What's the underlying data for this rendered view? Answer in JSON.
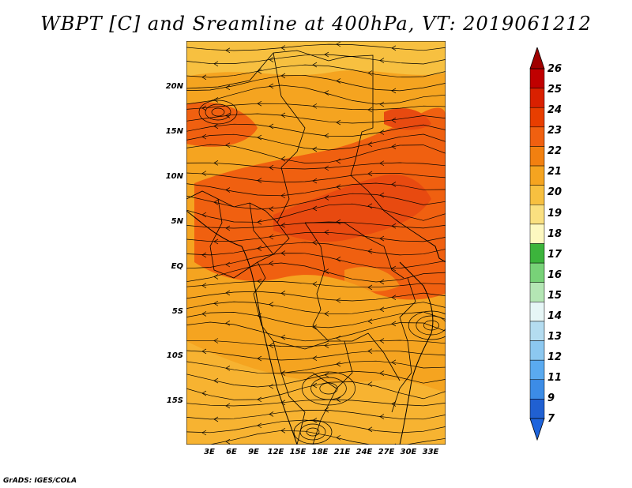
{
  "title": "WBPT [C] and Sreamline at 400hPa, VT: 2019061212",
  "credit": "GrADS: IGES/COLA",
  "lat_ticks": [
    "20N",
    "15N",
    "10N",
    "5N",
    "EQ",
    "5S",
    "10S",
    "15S"
  ],
  "lon_ticks": [
    "3E",
    "6E",
    "9E",
    "12E",
    "15E",
    "18E",
    "21E",
    "24E",
    "27E",
    "30E",
    "33E"
  ],
  "colorbar": {
    "labels": [
      "26",
      "25",
      "24",
      "23",
      "22",
      "21",
      "20",
      "19",
      "18",
      "17",
      "16",
      "15",
      "14",
      "13",
      "12",
      "11",
      "9",
      "7"
    ],
    "colors": [
      "#c00000",
      "#d92000",
      "#e83e00",
      "#f06010",
      "#f28010",
      "#f5a420",
      "#f7c040",
      "#fae080",
      "#fdf8c0",
      "#3cb43c",
      "#78d278",
      "#b4e6b4",
      "#e6f6f6",
      "#b4dcf0",
      "#8cc8f0",
      "#5aaaf0",
      "#3c8ce6",
      "#2060d2"
    ],
    "top_color": "#a00000",
    "bottom_color": "#1e64dc"
  },
  "map_colors": {
    "base": "#f5a420",
    "mid": "#f7c040",
    "hot": "#f06010",
    "hottest": "#e84a10"
  }
}
